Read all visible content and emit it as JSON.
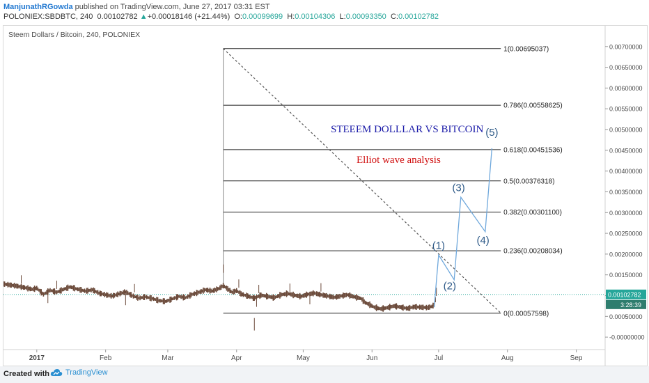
{
  "header": {
    "author": "ManjunathRGowda",
    "published_text": "published on TradingView.com, June 27, 2017 03:31 EST",
    "symbol": "POLONIEX:SBDBTC, 240",
    "last": "0.00102782",
    "change": "+0.00018146 (+21.44%)",
    "o_label": "O:",
    "o_value": "0.00099699",
    "h_label": "H:",
    "h_value": "0.00104306",
    "l_label": "L:",
    "l_value": "0.00093350",
    "c_label": "C:",
    "c_value": "0.00102782",
    "up_arrow": "▲"
  },
  "footer": {
    "created_with": "Created with",
    "brand": "TradingView",
    "logo_icon": "tradingview-cloud-icon"
  },
  "colors": {
    "fib_line": "#222222",
    "trend_line": "#555555",
    "wave": "#6fa8dc",
    "wave_label": "#2e5a88",
    "title_blue": "#1a1aa8",
    "subtitle_red": "#d01010",
    "candle": "#6b4a3a",
    "price_line": "#26a69a",
    "price_tag": "#26a69a",
    "countdown_tag": "#2e7d6e"
  },
  "chart_data": {
    "type": "line",
    "title": "Steem Dollars / Bitcoin, 240, POLONIEX",
    "annotation_title": "STEEEM DOLLLAR VS BITCOIN",
    "annotation_subtitle": "Elliot wave analysis",
    "x_ticks": [
      "2017",
      "Feb",
      "Mar",
      "Apr",
      "May",
      "Jun",
      "Jul",
      "Aug",
      "Sep"
    ],
    "y_ticks": [
      "-0.00000000",
      "0.00050000",
      "0.00100000",
      "0.00150000",
      "0.00200000",
      "0.00250000",
      "0.00300000",
      "0.00350000",
      "0.00400000",
      "0.00450000",
      "0.00500000",
      "0.00550000",
      "0.00600000",
      "0.00650000",
      "0.00700000"
    ],
    "ylim": [
      -0.0003,
      0.0075
    ],
    "x_range_days": [
      -15,
      256
    ],
    "last_price": 0.00102782,
    "last_price_label": "0.00102782",
    "countdown_label": "3:28:39",
    "fib_levels": [
      {
        "ratio": 1,
        "value": 0.00695037,
        "label": "1(0.00695037)"
      },
      {
        "ratio": 0.786,
        "value": 0.00558625,
        "label": "0.786(0.00558625)"
      },
      {
        "ratio": 0.618,
        "value": 0.00451536,
        "label": "0.618(0.00451536)"
      },
      {
        "ratio": 0.5,
        "value": 0.00376318,
        "label": "0.5(0.00376318)"
      },
      {
        "ratio": 0.382,
        "value": 0.003011,
        "label": "0.382(0.00301100)"
      },
      {
        "ratio": 0.236,
        "value": 0.00208034,
        "label": "0.236(0.00208034)"
      },
      {
        "ratio": 0,
        "value": 0.00057598,
        "label": "0(0.00057598)"
      }
    ],
    "fib_start_day": 84,
    "fib_end_day": 209,
    "trend_line": {
      "from": [
        84,
        0.00695
      ],
      "to": [
        209,
        0.00058
      ]
    },
    "waves": [
      {
        "label": "(1)",
        "day": 181,
        "price": 0.00198
      },
      {
        "label": "(2)",
        "day": 188,
        "price": 0.00138
      },
      {
        "label": "(3)",
        "day": 191,
        "price": 0.00337
      },
      {
        "label": "(4)",
        "day": 202,
        "price": 0.00254
      },
      {
        "label": "(5)",
        "day": 205,
        "price": 0.00455
      }
    ],
    "wave_start": {
      "day": 179,
      "price": 0.00072
    },
    "wave_label_pos": [
      {
        "day": 181,
        "price": 0.00212
      },
      {
        "day": 186,
        "price": 0.00115
      },
      {
        "day": 190,
        "price": 0.00352
      },
      {
        "day": 201,
        "price": 0.00225
      },
      {
        "day": 205,
        "price": 0.00485
      }
    ],
    "price_series": {
      "name": "SBDBTC",
      "points": [
        [
          -15,
          0.00128
        ],
        [
          -10,
          0.00124
        ],
        [
          -6,
          0.0012
        ],
        [
          -2,
          0.00115
        ],
        [
          0,
          0.00118
        ],
        [
          3,
          0.00103
        ],
        [
          6,
          0.00113
        ],
        [
          9,
          0.00108
        ],
        [
          12,
          0.00115
        ],
        [
          15,
          0.00121
        ],
        [
          18,
          0.00116
        ],
        [
          22,
          0.00111
        ],
        [
          25,
          0.00114
        ],
        [
          28,
          0.00106
        ],
        [
          31,
          0.00102
        ],
        [
          34,
          0.00099
        ],
        [
          37,
          0.00104
        ],
        [
          40,
          0.00109
        ],
        [
          43,
          0.001
        ],
        [
          46,
          0.00094
        ],
        [
          49,
          0.00097
        ],
        [
          52,
          0.00093
        ],
        [
          55,
          0.00088
        ],
        [
          58,
          0.00086
        ],
        [
          61,
          0.00092
        ],
        [
          64,
          0.00098
        ],
        [
          67,
          0.00095
        ],
        [
          70,
          0.00103
        ],
        [
          73,
          0.00108
        ],
        [
          76,
          0.00114
        ],
        [
          79,
          0.00111
        ],
        [
          82,
          0.00117
        ],
        [
          84,
          0.00124
        ],
        [
          86,
          0.00116
        ],
        [
          88,
          0.00108
        ],
        [
          90,
          0.00112
        ],
        [
          92,
          0.00104
        ],
        [
          95,
          0.00099
        ],
        [
          98,
          0.00094
        ],
        [
          101,
          0.00101
        ],
        [
          104,
          0.00098
        ],
        [
          107,
          0.00095
        ],
        [
          110,
          0.00102
        ],
        [
          113,
          0.00105
        ],
        [
          116,
          0.00101
        ],
        [
          119,
          0.00098
        ],
        [
          122,
          0.00103
        ],
        [
          125,
          0.00106
        ],
        [
          128,
          0.00102
        ],
        [
          131,
          0.00099
        ],
        [
          134,
          0.00096
        ],
        [
          137,
          0.00099
        ],
        [
          140,
          0.00102
        ],
        [
          143,
          0.00097
        ],
        [
          146,
          0.00093
        ],
        [
          148,
          0.00083
        ],
        [
          150,
          0.00078
        ],
        [
          152,
          0.00072
        ],
        [
          155,
          0.00068
        ],
        [
          158,
          0.00071
        ],
        [
          161,
          0.00075
        ],
        [
          164,
          0.00072
        ],
        [
          167,
          0.00069
        ],
        [
          170,
          0.00073
        ],
        [
          173,
          0.00072
        ],
        [
          176,
          0.00071
        ],
        [
          178,
          0.00074
        ],
        [
          179,
          0.00078
        ],
        [
          180,
          0.00102
        ]
      ],
      "spikes": [
        [
          -7,
          0.00149
        ],
        [
          9,
          0.00136
        ],
        [
          44,
          0.00128
        ],
        [
          84,
          0.00175
        ],
        [
          91,
          0.00139
        ],
        [
          100,
          0.00126
        ],
        [
          114,
          0.00129
        ],
        [
          128,
          0.0013
        ],
        [
          180,
          0.00119
        ]
      ],
      "dips": [
        [
          5,
          0.00082
        ],
        [
          40,
          0.00077
        ],
        [
          98,
          0.00016
        ],
        [
          99,
          0.00073
        ],
        [
          123,
          0.00079
        ]
      ]
    }
  }
}
